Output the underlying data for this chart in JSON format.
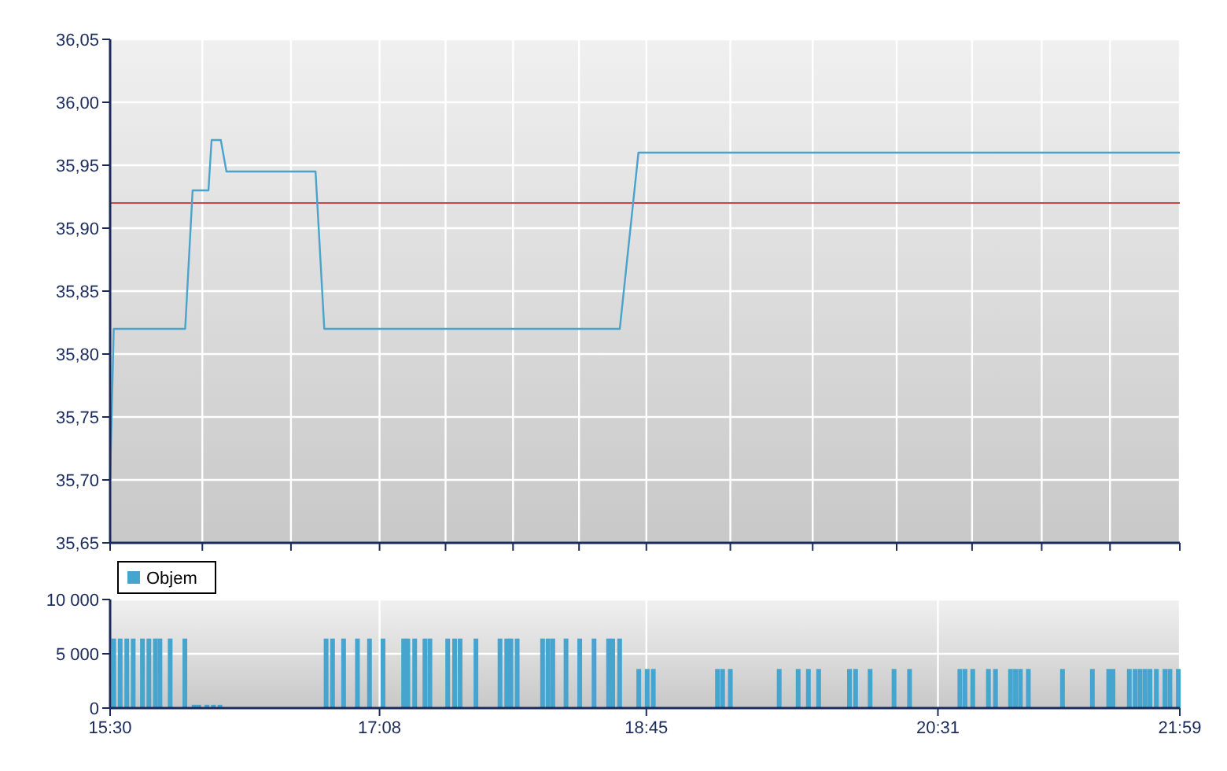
{
  "chart_data": [
    {
      "type": "line",
      "x": [
        15.5,
        15.522,
        15.955,
        16.0,
        16.096,
        16.115,
        16.171,
        16.205,
        16.745,
        16.798,
        18.589,
        18.702,
        21.983
      ],
      "series": [
        {
          "color": "#4aa3cc",
          "values": [
            35.7,
            35.82,
            35.82,
            35.93,
            35.93,
            35.97,
            35.97,
            35.945,
            35.945,
            35.82,
            35.82,
            35.96,
            35.96
          ]
        }
      ],
      "xlim": [
        15.5,
        21.983
      ],
      "xticks": [
        {
          "value": 15.5,
          "label": null
        },
        {
          "value": 16.059,
          "label": null
        },
        {
          "value": 16.596,
          "label": null
        },
        {
          "value": 17.133,
          "label": null
        },
        {
          "value": 17.533,
          "label": null
        },
        {
          "value": 17.942,
          "label": null
        },
        {
          "value": 18.342,
          "label": null
        },
        {
          "value": 18.75,
          "label": null
        },
        {
          "value": 19.259,
          "label": null
        },
        {
          "value": 19.758,
          "label": null
        },
        {
          "value": 20.267,
          "label": null
        },
        {
          "value": 20.724,
          "label": null
        },
        {
          "value": 21.146,
          "label": null
        },
        {
          "value": 21.56,
          "label": null
        },
        {
          "value": 21.983,
          "label": null
        }
      ],
      "ylim": [
        35.65,
        36.05
      ],
      "yticks": [
        {
          "value": 35.65,
          "label": "35,65"
        },
        {
          "value": 35.7,
          "label": "35,70"
        },
        {
          "value": 35.75,
          "label": "35,75"
        },
        {
          "value": 35.8,
          "label": "35,80"
        },
        {
          "value": 35.85,
          "label": "35,85"
        },
        {
          "value": 35.9,
          "label": "35,90"
        },
        {
          "value": 35.95,
          "label": "35,95"
        },
        {
          "value": 36.0,
          "label": "36,00"
        },
        {
          "value": 36.05,
          "label": "36,05"
        }
      ],
      "ref_lines": [
        {
          "axis": "y",
          "value": 35.92,
          "color": "#cc4444"
        }
      ],
      "grid": true,
      "tick_labels": "y"
    },
    {
      "type": "bar",
      "x": [
        15.522,
        15.561,
        15.601,
        15.64,
        15.696,
        15.735,
        15.774,
        15.802,
        15.864,
        15.953,
        16.009,
        16.037,
        16.087,
        16.126,
        16.166,
        16.809,
        16.848,
        16.915,
        16.999,
        17.072,
        17.154,
        17.279,
        17.304,
        17.346,
        17.408,
        17.438,
        17.546,
        17.588,
        17.621,
        17.717,
        17.863,
        17.904,
        17.929,
        17.967,
        18.121,
        18.154,
        18.183,
        18.263,
        18.346,
        18.433,
        18.521,
        18.546,
        18.588,
        18.704,
        18.755,
        18.792,
        19.181,
        19.212,
        19.259,
        19.555,
        19.67,
        19.732,
        19.794,
        19.981,
        20.018,
        20.106,
        20.251,
        20.345,
        20.65,
        20.681,
        20.728,
        20.823,
        20.866,
        20.957,
        20.987,
        21.017,
        21.065,
        21.272,
        21.453,
        21.552,
        21.578,
        21.677,
        21.712,
        21.742,
        21.772,
        21.802,
        21.841,
        21.893,
        21.923,
        21.974
      ],
      "series": [
        {
          "name": "Objem",
          "color": "#45a5cf",
          "values": [
            6400,
            6400,
            6400,
            6400,
            6400,
            6400,
            6400,
            6400,
            6400,
            6400,
            300,
            300,
            300,
            300,
            300,
            6400,
            6400,
            6400,
            6400,
            6400,
            6400,
            6400,
            6400,
            6400,
            6400,
            6400,
            6400,
            6400,
            6400,
            6400,
            6400,
            6400,
            6400,
            6400,
            6400,
            6400,
            6400,
            6400,
            6400,
            6400,
            6400,
            6400,
            6400,
            3600,
            3600,
            3600,
            3600,
            3600,
            3600,
            3600,
            3600,
            3600,
            3600,
            3600,
            3600,
            3600,
            3600,
            3600,
            3600,
            3600,
            3600,
            3600,
            3600,
            3600,
            3600,
            3600,
            3600,
            3600,
            3600,
            3600,
            3600,
            3600,
            3600,
            3600,
            3600,
            3600,
            3600,
            3600,
            3600,
            3600
          ]
        }
      ],
      "xlim": [
        15.5,
        21.983
      ],
      "xticks": [
        {
          "value": 15.5,
          "label": "15:30"
        },
        {
          "value": 17.133,
          "label": "17:08"
        },
        {
          "value": 18.75,
          "label": "18:45"
        },
        {
          "value": 20.517,
          "label": "20:31"
        },
        {
          "value": 21.983,
          "label": "21:59"
        }
      ],
      "ylim": [
        0,
        10000
      ],
      "yticks": [
        {
          "value": 0,
          "label": "0"
        },
        {
          "value": 5000,
          "label": "5 000"
        },
        {
          "value": 10000,
          "label": "10 000"
        }
      ],
      "grid": true,
      "legend": "top left"
    }
  ]
}
